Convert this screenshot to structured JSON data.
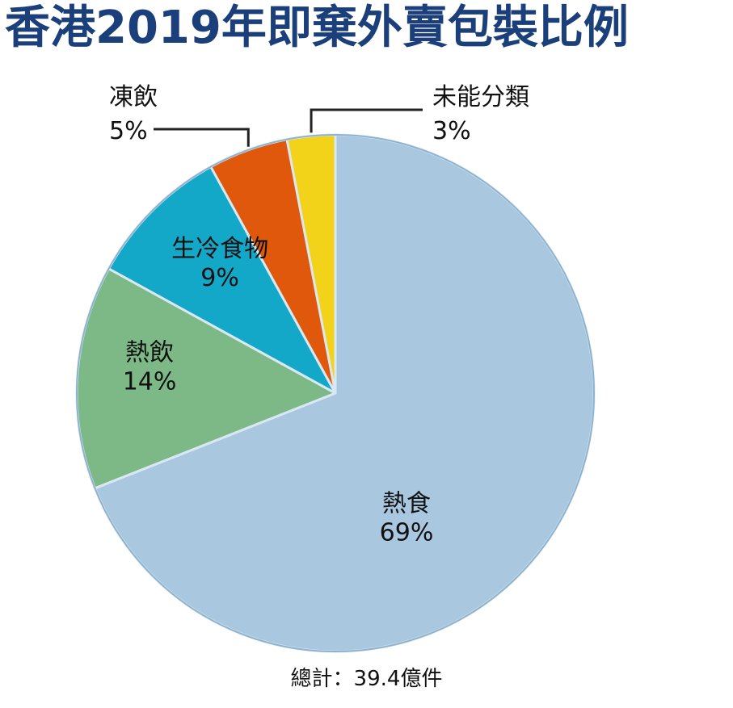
{
  "title": "香港2019年即棄外賣包裝比例",
  "total_label": "總計：39.4億件",
  "colors": {
    "title": "#1b3f7a",
    "callout_line": "#222222"
  },
  "chart_data": {
    "type": "pie",
    "title": "香港2019年即棄外賣包裝比例",
    "slices": [
      {
        "label": "熱食",
        "value": 69,
        "display": "69%",
        "color": "#a9c8e0",
        "label_position": "inside"
      },
      {
        "label": "熱飲",
        "value": 14,
        "display": "14%",
        "color": "#7cb987",
        "label_position": "inside"
      },
      {
        "label": "生冷食物",
        "value": 9,
        "display": "9%",
        "color": "#13a8c8",
        "label_position": "inside"
      },
      {
        "label": "凍飲",
        "value": 5,
        "display": "5%",
        "color": "#e0580c",
        "label_position": "callout-left"
      },
      {
        "label": "未能分類",
        "value": 3,
        "display": "3%",
        "color": "#f3d21a",
        "label_position": "callout-right"
      }
    ]
  }
}
